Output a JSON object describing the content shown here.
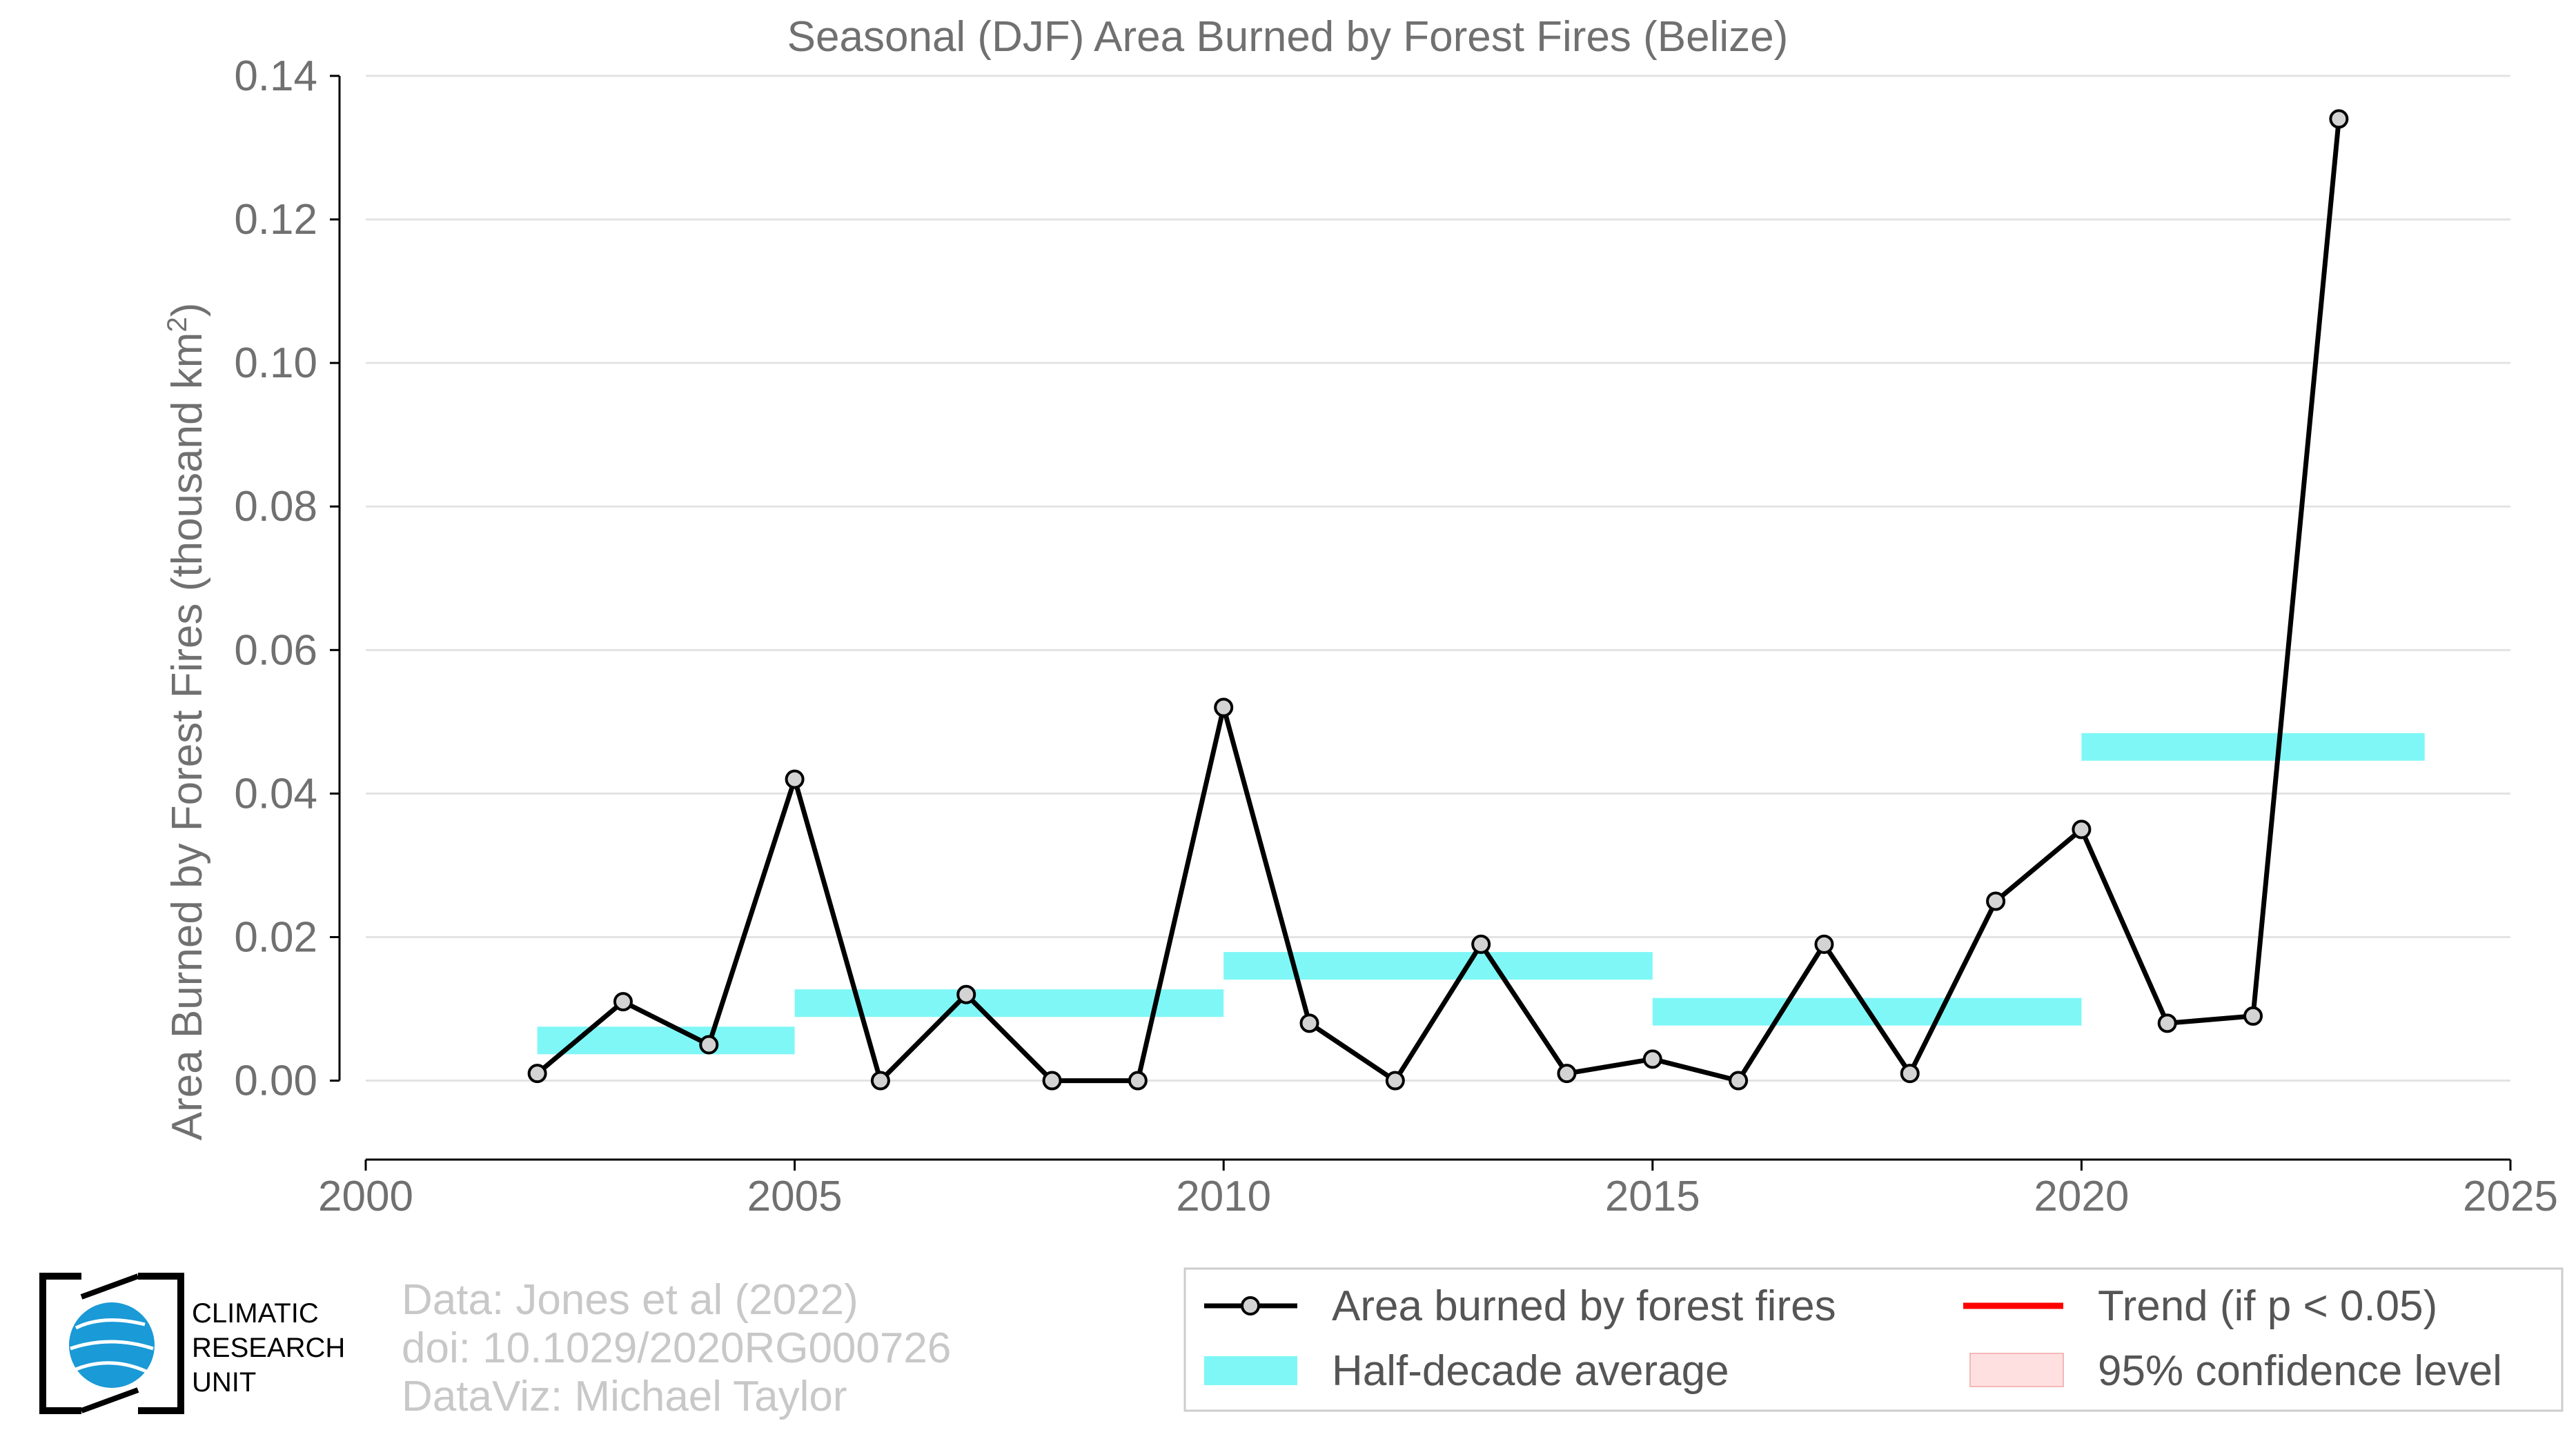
{
  "chart_data": {
    "type": "line",
    "title": "Seasonal (DJF) Area Burned by Forest Fires (Belize)",
    "ylabel": "Area Burned by Forest Fires (thousand km",
    "ylabel_sup": "2",
    "ylabel_close": ")",
    "xlabel": "",
    "xlim": [
      2000,
      2025
    ],
    "ylim": [
      -0.011,
      0.14
    ],
    "xticks": [
      2000,
      2005,
      2010,
      2015,
      2020,
      2025
    ],
    "yticks": [
      "0.00",
      "0.02",
      "0.04",
      "0.06",
      "0.08",
      "0.10",
      "0.12",
      "0.14"
    ],
    "grid": "horizontal",
    "series": [
      {
        "name": "Area burned by forest fires",
        "color": "#000000",
        "marker_fill": "#d3d3d3",
        "x": [
          2002,
          2003,
          2004,
          2005,
          2006,
          2007,
          2008,
          2009,
          2010,
          2011,
          2012,
          2013,
          2014,
          2015,
          2016,
          2017,
          2018,
          2019,
          2020,
          2021,
          2022,
          2023
        ],
        "y": [
          0.001,
          0.011,
          0.005,
          0.042,
          0.0,
          0.012,
          0.0,
          0.0,
          0.052,
          0.008,
          0.0,
          0.019,
          0.001,
          0.003,
          0.0,
          0.019,
          0.001,
          0.025,
          0.035,
          0.008,
          0.009,
          0.134
        ]
      }
    ],
    "half_decade_average": {
      "name": "Half-decade average",
      "color": "#7ff7f7",
      "segments": [
        {
          "x0": 2002,
          "x1": 2005,
          "y": 0.0056
        },
        {
          "x0": 2005,
          "x1": 2010,
          "y": 0.0108
        },
        {
          "x0": 2010,
          "x1": 2015,
          "y": 0.016
        },
        {
          "x0": 2015,
          "x1": 2020,
          "y": 0.0096
        },
        {
          "x0": 2020,
          "x1": 2024,
          "y": 0.0465
        }
      ]
    },
    "legend": {
      "placement": "bottom-right",
      "entries": [
        {
          "label": "Area burned by forest fires",
          "kind": "line-marker",
          "color": "#000000"
        },
        {
          "label": "Trend (if p < 0.05)",
          "kind": "line",
          "color": "#ff0000"
        },
        {
          "label": "Half-decade average",
          "kind": "patch",
          "color": "#7ff7f7"
        },
        {
          "label": "95% confidence level",
          "kind": "patch",
          "color": "#ffe0e0"
        }
      ]
    }
  },
  "credits": {
    "line1": "Data: Jones et al (2022)",
    "line2": "doi: 10.1029/2020RG000726",
    "line3": "DataViz: Michael Taylor"
  },
  "logo": {
    "name": "cru-logo-icon",
    "text_lines": [
      "CLIMATIC",
      "RESEARCH",
      "UNIT"
    ],
    "color": "#1a9ad6"
  }
}
